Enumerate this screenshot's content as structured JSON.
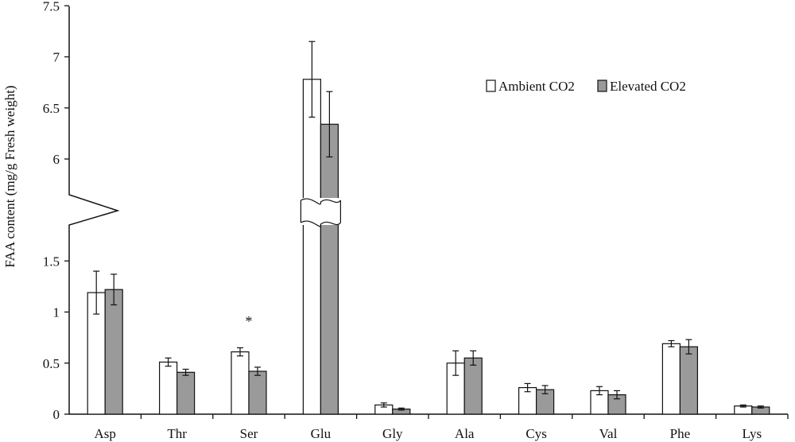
{
  "chart_data": {
    "type": "bar",
    "categories": [
      "Asp",
      "Thr",
      "Ser",
      "Glu",
      "Gly",
      "Ala",
      "Cys",
      "Val",
      "Phe",
      "Lys"
    ],
    "series": [
      {
        "name": "Ambient CO2",
        "color": "#ffffff",
        "values": [
          1.19,
          0.51,
          0.61,
          6.78,
          0.09,
          0.5,
          0.26,
          0.23,
          0.69,
          0.08
        ],
        "errors": [
          0.21,
          0.04,
          0.04,
          0.37,
          0.02,
          0.12,
          0.04,
          0.04,
          0.03,
          0.01
        ]
      },
      {
        "name": "Elevated CO2",
        "color": "#9a9a9a",
        "values": [
          1.22,
          0.41,
          0.42,
          6.34,
          0.05,
          0.55,
          0.24,
          0.19,
          0.66,
          0.07
        ],
        "errors": [
          0.15,
          0.03,
          0.04,
          0.32,
          0.01,
          0.07,
          0.04,
          0.04,
          0.07,
          0.01
        ]
      }
    ],
    "ylabel": "FAA content (mg/g Fresh weight)",
    "xlabel": "",
    "ylim": [
      0,
      7.5
    ],
    "axis_break": [
      1.75,
      5.75
    ],
    "lower_ticks": [
      "0",
      "0.5",
      "1",
      "1.5"
    ],
    "upper_ticks": [
      "6",
      "6.5",
      "7",
      "7.5"
    ],
    "annotations": [
      {
        "category": "Ser",
        "text": "*"
      }
    ],
    "legend_position": "top-right",
    "grid": false
  }
}
